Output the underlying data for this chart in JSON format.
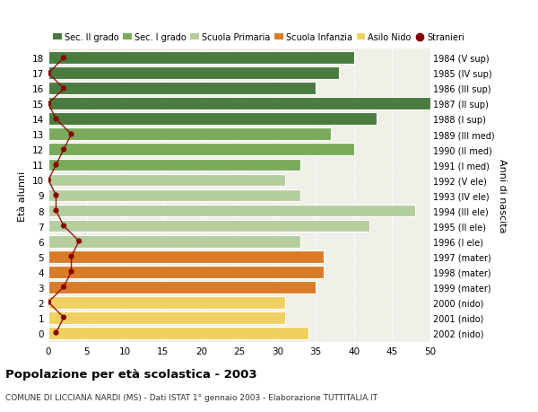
{
  "ages": [
    18,
    17,
    16,
    15,
    14,
    13,
    12,
    11,
    10,
    9,
    8,
    7,
    6,
    5,
    4,
    3,
    2,
    1,
    0
  ],
  "values": [
    40,
    38,
    35,
    50,
    43,
    37,
    40,
    33,
    31,
    33,
    48,
    42,
    33,
    36,
    36,
    35,
    31,
    31,
    34
  ],
  "stranieri": [
    2,
    0,
    2,
    0,
    1,
    3,
    2,
    1,
    0,
    1,
    1,
    2,
    4,
    3,
    3,
    2,
    0,
    2,
    1
  ],
  "right_labels": [
    "1984 (V sup)",
    "1985 (IV sup)",
    "1986 (III sup)",
    "1987 (II sup)",
    "1988 (I sup)",
    "1989 (III med)",
    "1990 (II med)",
    "1991 (I med)",
    "1992 (V ele)",
    "1993 (IV ele)",
    "1994 (III ele)",
    "1995 (II ele)",
    "1996 (I ele)",
    "1997 (mater)",
    "1998 (mater)",
    "1999 (mater)",
    "2000 (nido)",
    "2001 (nido)",
    "2002 (nido)"
  ],
  "bar_colors": [
    "#4a7c3f",
    "#4a7c3f",
    "#4a7c3f",
    "#4a7c3f",
    "#4a7c3f",
    "#7aab5a",
    "#7aab5a",
    "#7aab5a",
    "#b5ce9e",
    "#b5ce9e",
    "#b5ce9e",
    "#b5ce9e",
    "#b5ce9e",
    "#d97c2a",
    "#d97c2a",
    "#d97c2a",
    "#f0d060",
    "#f0d060",
    "#f0d060"
  ],
  "legend_labels": [
    "Sec. II grado",
    "Sec. I grado",
    "Scuola Primaria",
    "Scuola Infanzia",
    "Asilo Nido",
    "Stranieri"
  ],
  "legend_colors": [
    "#4a7c3f",
    "#7aab5a",
    "#b5ce9e",
    "#d97c2a",
    "#f0d060",
    "#aa1111"
  ],
  "title": "Popolazione per età scolastica - 2003",
  "subtitle": "COMUNE DI LICCIANA NARDI (MS) - Dati ISTAT 1° gennaio 2003 - Elaborazione TUTTITALIA.IT",
  "ylabel_left": "Età alunni",
  "ylabel_right": "Anni di nascita",
  "bg_color": "#ffffff",
  "plot_bg_color": "#f0f0e8",
  "stranieri_color": "#8b0000",
  "stranieri_line_color": "#8b0000",
  "xlim": [
    0,
    50
  ],
  "xticks": [
    0,
    5,
    10,
    15,
    20,
    25,
    30,
    35,
    40,
    45,
    50
  ]
}
